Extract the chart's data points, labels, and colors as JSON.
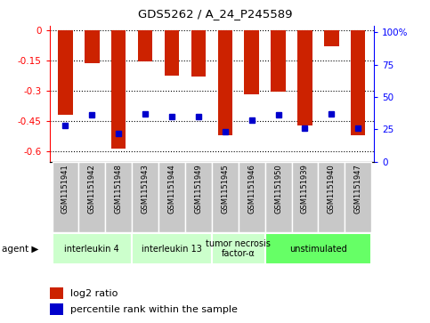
{
  "title": "GDS5262 / A_24_P245589",
  "samples": [
    "GSM1151941",
    "GSM1151942",
    "GSM1151948",
    "GSM1151943",
    "GSM1151944",
    "GSM1151949",
    "GSM1151945",
    "GSM1151946",
    "GSM1151950",
    "GSM1151939",
    "GSM1151940",
    "GSM1151947"
  ],
  "log2_ratio": [
    -0.42,
    -0.165,
    -0.585,
    -0.155,
    -0.225,
    -0.23,
    -0.52,
    -0.32,
    -0.305,
    -0.47,
    -0.08,
    -0.52
  ],
  "percentile_rank": [
    28,
    36,
    22,
    37,
    35,
    35,
    23,
    32,
    36,
    26,
    37,
    26
  ],
  "agents": [
    {
      "label": "interleukin 4",
      "col_indices": [
        0,
        1,
        2
      ],
      "color": "#ccffcc"
    },
    {
      "label": "interleukin 13",
      "col_indices": [
        3,
        4,
        5
      ],
      "color": "#ccffcc"
    },
    {
      "label": "tumor necrosis\nfactor-α",
      "col_indices": [
        6,
        7
      ],
      "color": "#ccffcc"
    },
    {
      "label": "unstimulated",
      "col_indices": [
        8,
        9,
        10,
        11
      ],
      "color": "#66ff66"
    }
  ],
  "ylim_left": [
    -0.65,
    0.02
  ],
  "ylim_right": [
    0,
    105
  ],
  "yticks_left": [
    0,
    -0.15,
    -0.3,
    -0.45,
    -0.6
  ],
  "yticks_right": [
    0,
    25,
    50,
    75,
    100
  ],
  "bar_color": "#cc2200",
  "dot_color": "#0000cc",
  "legend_items": [
    "log2 ratio",
    "percentile rank within the sample"
  ]
}
